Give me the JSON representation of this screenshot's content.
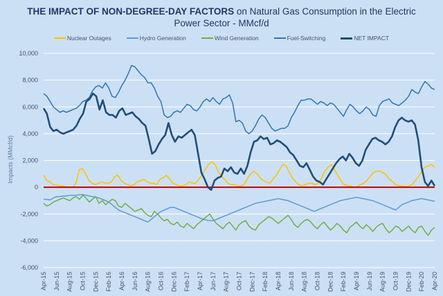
{
  "title": {
    "bold": "THE IMPACT OF NON-DEGREE-DAY FACTORS",
    "rest_line1": " on Natural Gas Consumption in the Electric",
    "line2": "Power Sector - MMcf/d"
  },
  "chart_data": {
    "type": "line",
    "title": "THE IMPACT OF NON-DEGREE-DAY FACTORS on Natural Gas Consumption in the Electric Power Sector - MMcf/d",
    "xlabel": "",
    "ylabel": "Impacts (MMcf/d)",
    "ylim": [
      -6000,
      10000
    ],
    "yticks": [
      10000,
      8000,
      6000,
      4000,
      2000,
      0,
      -2000,
      -4000,
      -6000
    ],
    "ytick_labels": [
      "10,000",
      "8,000",
      "6,000",
      "4,000",
      "2,000",
      "0",
      "-2,000",
      "-4,000",
      "-6,000"
    ],
    "x_tick_labels": [
      "Apr-15",
      "Jun-15",
      "Aug-15",
      "Oct-15",
      "Dec-15",
      "Feb-16",
      "Apr-16",
      "Jun-16",
      "Aug-16",
      "Oct-16",
      "Dec-16",
      "Feb-17",
      "Apr-17",
      "Jun-17",
      "Aug-17",
      "Oct-17",
      "Dec-17",
      "Feb-18",
      "Apr-18",
      "Jun-18",
      "Aug-18",
      "Oct-18",
      "Dec-18",
      "Feb-19",
      "Apr-19",
      "Jun-19",
      "Aug-19",
      "Oct-19",
      "Dec-19",
      "Feb-20",
      "Apr-20"
    ],
    "x_range": [
      "Apr-15",
      "Apr-20"
    ],
    "x_points_per_month": 2,
    "grid": true,
    "legend_position": "top",
    "zero_line_color": "#c00000",
    "series": [
      {
        "name": "Nuclear Outages",
        "color": "#ffc000",
        "values": [
          900,
          500,
          400,
          200,
          150,
          100,
          100,
          50,
          0,
          0,
          300,
          1300,
          1400,
          1000,
          500,
          300,
          200,
          300,
          400,
          300,
          300,
          400,
          800,
          900,
          500,
          300,
          200,
          100,
          200,
          400,
          500,
          600,
          400,
          300,
          300,
          200,
          600,
          700,
          900,
          600,
          300,
          200,
          100,
          100,
          200,
          400,
          300,
          300,
          600,
          900,
          1300,
          1700,
          1900,
          1700,
          1200,
          800,
          600,
          300,
          200,
          200,
          100,
          100,
          200,
          600,
          1000,
          1200,
          1000,
          700,
          500,
          400,
          300,
          600,
          900,
          1300,
          1700,
          1600,
          1100,
          700,
          400,
          200,
          100,
          200,
          300,
          300,
          200,
          300,
          700,
          1200,
          1500,
          1700,
          1300,
          900,
          500,
          200,
          100,
          100,
          0,
          50,
          200,
          300,
          500,
          800,
          1100,
          1200,
          1200,
          1100,
          900,
          600,
          400,
          200,
          100,
          100,
          50,
          100,
          200,
          500,
          800,
          1200,
          1500,
          1600,
          1700,
          1500
        ]
      },
      {
        "name": "Hydro Generation",
        "color": "#5b9bd5",
        "values": [
          -900,
          -900,
          -950,
          -800,
          -700,
          -700,
          -650,
          -650,
          -600,
          -600,
          -600,
          -550,
          -550,
          -600,
          -650,
          -700,
          -750,
          -800,
          -900,
          -1000,
          -1100,
          -1300,
          -1500,
          -1700,
          -1800,
          -1900,
          -2000,
          -2100,
          -2200,
          -2300,
          -2400,
          -2500,
          -2600,
          -2400,
          -2200,
          -2000,
          -1800,
          -1700,
          -1600,
          -1500,
          -1500,
          -1600,
          -1700,
          -1800,
          -1900,
          -2000,
          -2100,
          -2200,
          -2300,
          -2400,
          -2450,
          -2500,
          -2500,
          -2400,
          -2300,
          -2200,
          -2100,
          -2000,
          -1900,
          -1800,
          -1700,
          -1600,
          -1500,
          -1400,
          -1300,
          -1200,
          -1150,
          -1100,
          -1050,
          -1000,
          -950,
          -900,
          -850,
          -900,
          -950,
          -1000,
          -1100,
          -1200,
          -1300,
          -1400,
          -1500,
          -1600,
          -1700,
          -1800,
          -1700,
          -1600,
          -1500,
          -1400,
          -1300,
          -1200,
          -1100,
          -1000,
          -950,
          -900,
          -850,
          -800,
          -750,
          -800,
          -850,
          -900,
          -950,
          -1000,
          -1100,
          -1200,
          -1300,
          -1400,
          -1500,
          -1600,
          -1700,
          -1500,
          -1300,
          -1200,
          -1100,
          -1000,
          -950,
          -900,
          -850,
          -900,
          -950,
          -1000,
          -1050
        ]
      },
      {
        "name": "Wind Generation",
        "color": "#70ad47",
        "values": [
          -1200,
          -1400,
          -1300,
          -1100,
          -1000,
          -900,
          -800,
          -900,
          -1000,
          -800,
          -700,
          -900,
          -600,
          -800,
          -1100,
          -900,
          -700,
          -1200,
          -1000,
          -1300,
          -1100,
          -900,
          -1000,
          -1400,
          -1500,
          -1200,
          -1400,
          -1600,
          -1800,
          -1700,
          -1600,
          -1900,
          -2100,
          -2200,
          -1800,
          -2000,
          -2300,
          -2500,
          -2400,
          -2700,
          -2800,
          -2600,
          -2900,
          -3000,
          -2700,
          -2900,
          -3100,
          -2800,
          -2600,
          -2400,
          -2200,
          -2000,
          -2400,
          -2700,
          -2900,
          -3100,
          -2800,
          -2600,
          -2900,
          -3200,
          -2800,
          -2600,
          -2500,
          -2900,
          -3100,
          -3200,
          -2800,
          -2600,
          -2400,
          -2200,
          -2300,
          -2500,
          -2700,
          -2500,
          -2300,
          -2100,
          -2400,
          -2800,
          -3000,
          -2700,
          -2500,
          -2400,
          -2600,
          -2900,
          -3100,
          -2800,
          -2600,
          -2900,
          -3200,
          -3000,
          -2700,
          -2900,
          -3200,
          -3400,
          -3000,
          -2800,
          -2600,
          -2900,
          -3100,
          -2800,
          -3000,
          -3300,
          -3000,
          -2800,
          -2700,
          -3100,
          -3400,
          -3200,
          -2900,
          -3000,
          -3300,
          -3100,
          -2900,
          -3200,
          -3400,
          -3000,
          -2900,
          -3300,
          -3600,
          -3200,
          -3000
        ]
      },
      {
        "name": "Fuel-Switching",
        "color": "#2e75b6",
        "values": [
          7000,
          6800,
          6400,
          6000,
          5800,
          5600,
          5700,
          5600,
          5700,
          5800,
          5900,
          6100,
          6400,
          6500,
          6700,
          7200,
          7500,
          7600,
          7400,
          7800,
          7400,
          6800,
          6700,
          7100,
          7600,
          8000,
          8500,
          9100,
          9000,
          8700,
          8400,
          8200,
          7800,
          7800,
          7400,
          6800,
          6400,
          5400,
          5200,
          5300,
          5600,
          5700,
          5600,
          5900,
          6200,
          6100,
          5800,
          5700,
          6000,
          6400,
          6600,
          6400,
          6700,
          6400,
          6200,
          6600,
          6700,
          6900,
          6300,
          4900,
          5000,
          4800,
          4200,
          4000,
          4200,
          4600,
          5100,
          5400,
          5200,
          4800,
          4400,
          4200,
          4300,
          4400,
          4400,
          4600,
          5200,
          5600,
          6100,
          6500,
          6500,
          6600,
          6600,
          6400,
          6200,
          6400,
          6300,
          6100,
          6300,
          6200,
          5900,
          5600,
          5300,
          5800,
          6200,
          6000,
          5700,
          5500,
          5700,
          6000,
          5800,
          5400,
          5300,
          6100,
          6400,
          6500,
          6600,
          6300,
          6200,
          6100,
          6300,
          6500,
          6800,
          7300,
          7100,
          7000,
          7500,
          7900,
          7700,
          7400,
          7300
        ]
      },
      {
        "name": "NET IMPACT",
        "color": "#1f4e79",
        "values": [
          5900,
          5500,
          4500,
          4200,
          4300,
          4100,
          4000,
          4100,
          4200,
          4300,
          4600,
          5100,
          5500,
          6400,
          6600,
          7000,
          6800,
          5800,
          6500,
          5600,
          5400,
          5400,
          5200,
          5700,
          5900,
          5400,
          5500,
          5600,
          5300,
          5100,
          4800,
          4600,
          3600,
          2500,
          2700,
          3200,
          3600,
          3900,
          4800,
          3900,
          3400,
          3800,
          3700,
          3900,
          4100,
          4300,
          3900,
          2500,
          1100,
          600,
          0,
          -200,
          500,
          700,
          800,
          1400,
          1200,
          1500,
          1100,
          1000,
          1400,
          1000,
          1600,
          2600,
          3400,
          3500,
          3800,
          3600,
          3700,
          3200,
          3300,
          3500,
          3400,
          3200,
          3000,
          2600,
          2400,
          2000,
          1600,
          1500,
          1800,
          1300,
          800,
          500,
          400,
          200,
          600,
          1000,
          1400,
          1800,
          2100,
          2300,
          2000,
          2500,
          2200,
          1800,
          1600,
          2000,
          2800,
          3200,
          3600,
          3700,
          3500,
          3400,
          3200,
          3400,
          3800,
          4500,
          5000,
          5200,
          5000,
          4900,
          5000,
          4700,
          3500,
          1500,
          400,
          100,
          500,
          100
        ]
      }
    ]
  }
}
